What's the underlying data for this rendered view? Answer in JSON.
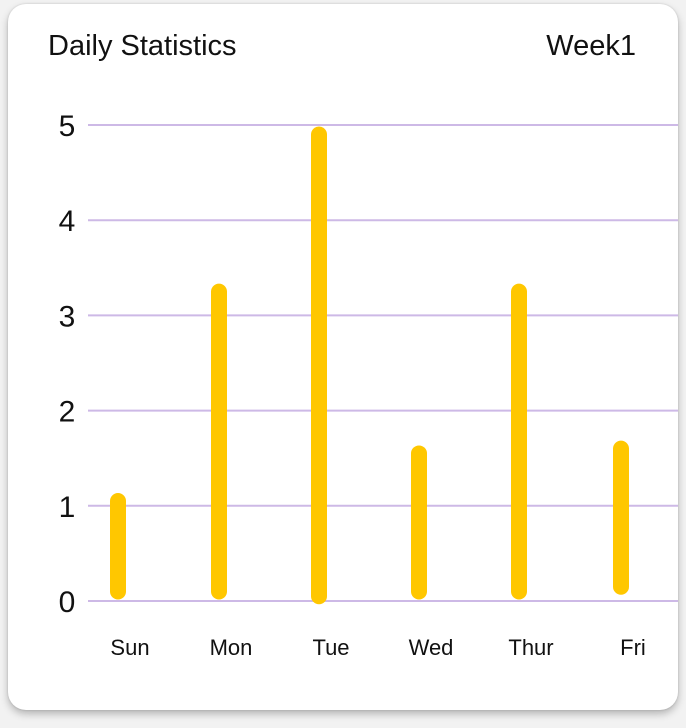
{
  "header": {
    "title": "Daily Statistics",
    "period": "Week1"
  },
  "colors": {
    "bar": "#FFC700",
    "grid": "#CDB9E6",
    "text": "#111111",
    "card": "#ffffff"
  },
  "chart_data": {
    "type": "bar",
    "title": "Daily Statistics",
    "xlabel": "",
    "ylabel": "",
    "categories": [
      "Sun",
      "Mon",
      "Tue",
      "Wed",
      "Thur",
      "Fri"
    ],
    "series": [
      {
        "ranges": [
          [
            0.1,
            1.05
          ],
          [
            0.1,
            3.25
          ],
          [
            0.05,
            4.9
          ],
          [
            0.1,
            1.55
          ],
          [
            0.1,
            3.25
          ],
          [
            0.15,
            1.6
          ]
        ]
      }
    ],
    "yticks": [
      "0",
      "1",
      "2",
      "3",
      "4",
      "5"
    ],
    "ylim": [
      0,
      5
    ],
    "grid": "horizontal",
    "legend": "none"
  }
}
